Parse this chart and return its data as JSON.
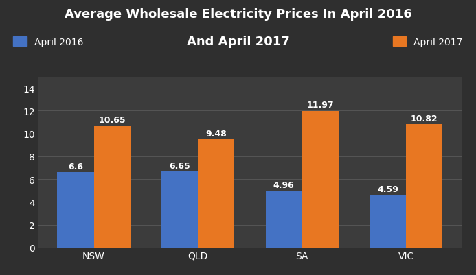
{
  "title_line1": "Average Wholesale Electricity Prices In April 2016",
  "title_line2": "And April 2017",
  "categories": [
    "NSW",
    "QLD",
    "SA",
    "VIC"
  ],
  "values_2016": [
    6.6,
    6.65,
    4.96,
    4.59
  ],
  "values_2017": [
    10.65,
    9.48,
    11.97,
    10.82
  ],
  "color_2016": "#4472C4",
  "color_2017": "#E87722",
  "background_color": "#2F2F2F",
  "axes_background_color": "#3C3C3C",
  "text_color": "#FFFFFF",
  "grid_color": "#555555",
  "legend_label_2016": "April 2016",
  "legend_label_2017": "April 2017",
  "ylim": [
    0,
    15
  ],
  "yticks": [
    0,
    2,
    4,
    6,
    8,
    10,
    12,
    14
  ],
  "bar_width": 0.35,
  "title_fontsize": 13,
  "label_fontsize": 10,
  "tick_fontsize": 10,
  "annotation_fontsize": 9
}
